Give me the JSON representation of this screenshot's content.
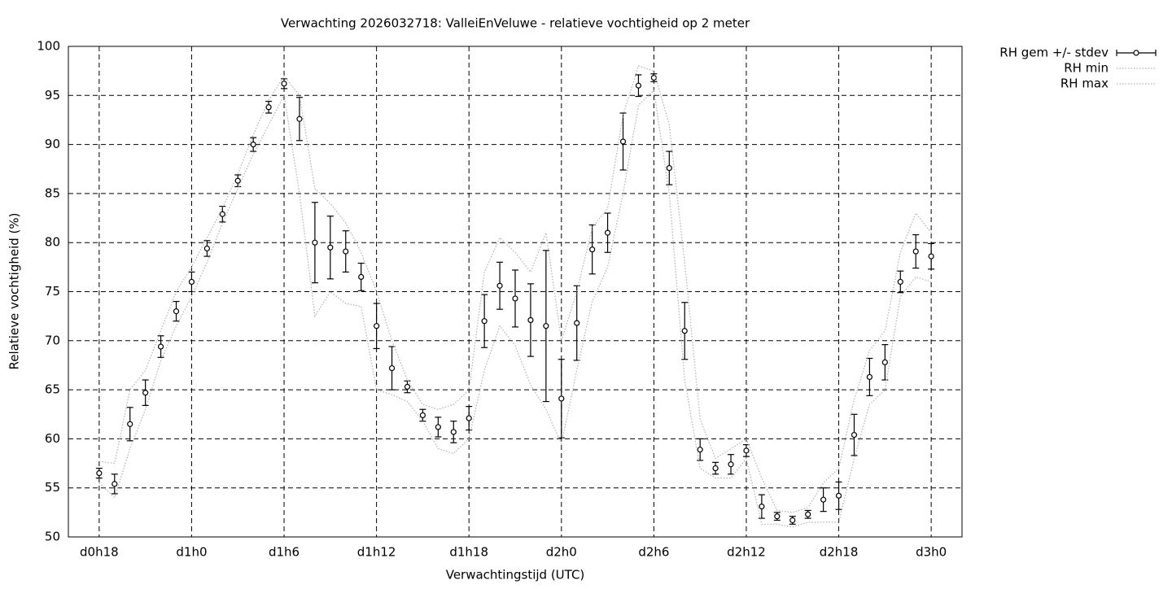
{
  "chart_data": {
    "type": "line",
    "title": "Verwachting 2026032718: ValleiEnVeluwe - relatieve vochtigheid op 2 meter",
    "x_label": "Verwachtingstijd (UTC)",
    "y_label": "Relatieve vochtigheid (%)",
    "x": [
      18,
      19,
      20,
      21,
      22,
      23,
      24,
      25,
      26,
      27,
      28,
      29,
      30,
      31,
      32,
      33,
      34,
      35,
      36,
      37,
      38,
      39,
      40,
      41,
      42,
      43,
      44,
      45,
      46,
      47,
      48,
      49,
      50,
      51,
      52,
      53,
      54,
      55,
      56,
      57,
      58,
      59,
      60,
      61,
      62,
      63,
      64,
      65,
      66,
      67,
      68,
      69,
      70,
      71,
      72
    ],
    "series": [
      {
        "name": "RH gem +/- stdev",
        "color": "#000000",
        "values": [
          56.5,
          55.4,
          61.5,
          64.7,
          69.4,
          73.0,
          76.0,
          79.4,
          82.9,
          86.3,
          90.0,
          93.8,
          96.2,
          92.6,
          80.0,
          79.5,
          79.1,
          76.5,
          71.5,
          67.2,
          65.3,
          62.4,
          61.2,
          60.7,
          62.1,
          72.0,
          75.6,
          74.3,
          72.1,
          71.5,
          64.1,
          71.8,
          79.3,
          81.0,
          90.3,
          96.0,
          96.8,
          87.6,
          71.0,
          58.9,
          57.0,
          57.4,
          58.8,
          53.1,
          52.1,
          51.7,
          52.3,
          53.8,
          54.2,
          60.4,
          66.3,
          67.8,
          76.0,
          79.1,
          78.6
        ],
        "errors": [
          0.5,
          1.0,
          1.7,
          1.3,
          1.1,
          1.0,
          1.0,
          0.8,
          0.8,
          0.6,
          0.7,
          0.6,
          0.5,
          2.2,
          4.1,
          3.2,
          2.1,
          1.4,
          2.3,
          2.2,
          0.6,
          0.6,
          1.0,
          1.1,
          1.2,
          2.7,
          2.4,
          2.9,
          3.7,
          7.7,
          4.0,
          3.8,
          2.5,
          2.0,
          2.9,
          1.1,
          0.4,
          1.7,
          2.9,
          1.1,
          0.6,
          1.0,
          0.6,
          1.2,
          0.4,
          0.4,
          0.4,
          1.2,
          1.4,
          2.1,
          1.9,
          1.8,
          1.1,
          1.7,
          1.3
        ]
      },
      {
        "name": "RH min",
        "color": "#b0b0b0",
        "values": [
          55.5,
          54,
          59,
          63,
          68,
          71.5,
          74.5,
          78,
          82,
          85.5,
          89,
          92,
          95,
          85,
          72.5,
          75,
          73.8,
          73.5,
          65,
          64.5,
          63.8,
          61.8,
          59,
          58.5,
          60,
          67,
          71.5,
          69.5,
          65.5,
          63,
          59.5,
          67,
          74,
          77.5,
          85,
          94,
          95.5,
          85,
          66,
          57,
          56,
          56,
          58,
          51.3,
          51.3,
          51,
          51.5,
          51.5,
          51.5,
          58,
          63.5,
          65,
          74.5,
          76.5,
          76
        ]
      },
      {
        "name": "RH max",
        "color": "#b0b0b0",
        "values": [
          57.7,
          57.5,
          65,
          67,
          71,
          75,
          77.5,
          80.5,
          83.5,
          87,
          91,
          94.5,
          97,
          95,
          85.5,
          84,
          82,
          79,
          75,
          70,
          66,
          63.5,
          63,
          63.5,
          65,
          77,
          80.5,
          79,
          77,
          81,
          70,
          75,
          81.5,
          83.5,
          93,
          98,
          97.5,
          92,
          78,
          62,
          58,
          59,
          60,
          56,
          52.7,
          52.5,
          53,
          55.5,
          57,
          64,
          69,
          71,
          79,
          83,
          81
        ]
      }
    ],
    "xlim": [
      16,
      74
    ],
    "ylim": [
      50,
      100
    ],
    "xticks": [
      {
        "value": 18,
        "label": "d0h18"
      },
      {
        "value": 24,
        "label": "d1h0"
      },
      {
        "value": 30,
        "label": "d1h6"
      },
      {
        "value": 36,
        "label": "d1h12"
      },
      {
        "value": 42,
        "label": "d1h18"
      },
      {
        "value": 48,
        "label": "d2h0"
      },
      {
        "value": 54,
        "label": "d2h6"
      },
      {
        "value": 60,
        "label": "d2h12"
      },
      {
        "value": 66,
        "label": "d2h18"
      },
      {
        "value": 72,
        "label": "d3h0"
      }
    ],
    "yticks": [
      50,
      55,
      60,
      65,
      70,
      75,
      80,
      85,
      90,
      95,
      100
    ],
    "grid": true,
    "legend": "right"
  }
}
